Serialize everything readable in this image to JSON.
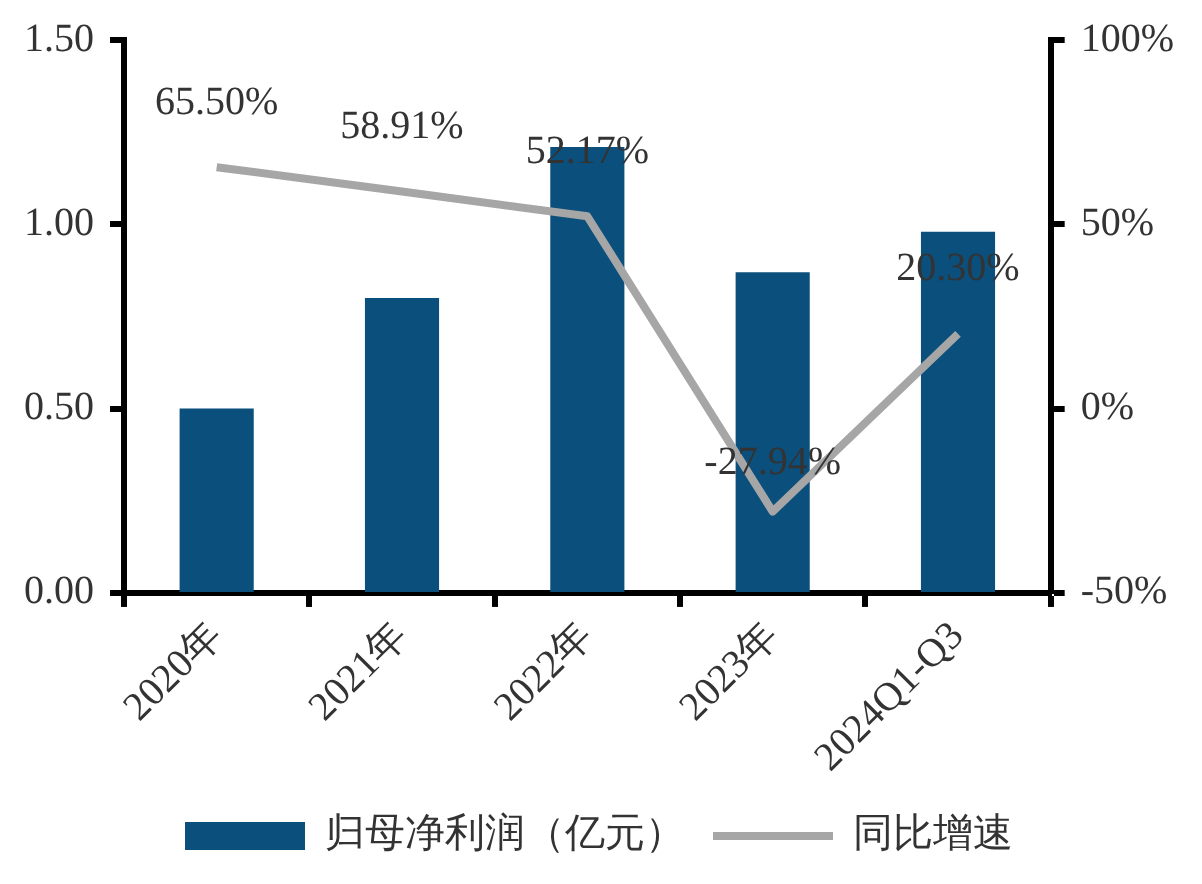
{
  "chart_data": {
    "type": "bar",
    "categories": [
      "2020年",
      "2021年",
      "2022年",
      "2023年",
      "2024Q1-Q3"
    ],
    "series": [
      {
        "name": "归母净利润（亿元）",
        "color": "#0b4f7c",
        "values": [
          0.5,
          0.8,
          1.21,
          0.87,
          0.98
        ]
      },
      {
        "name": "同比增速",
        "type": "line",
        "axis": "y2",
        "color": "#a6a6a6",
        "values": [
          65.5,
          58.91,
          52.17,
          -27.94,
          20.3
        ],
        "value_labels": [
          "65.50%",
          "58.91%",
          "52.17%",
          "-27.94%",
          "20.30%"
        ]
      }
    ],
    "ylim": [
      0,
      1.5
    ],
    "yticks": [
      {
        "value": 0,
        "label": "0.00"
      },
      {
        "value": 0.5,
        "label": "0.50"
      },
      {
        "value": 1,
        "label": "1.00"
      },
      {
        "value": 1.5,
        "label": "1.50"
      }
    ],
    "y2lim": [
      -50,
      100
    ],
    "y2ticks": [
      {
        "value": -50,
        "label": "-50%"
      },
      {
        "value": 0,
        "label": "0%"
      },
      {
        "value": 50,
        "label": "50%"
      },
      {
        "value": 100,
        "label": "100%"
      }
    ],
    "grid": false,
    "legend": "bottom",
    "marker": "none"
  }
}
